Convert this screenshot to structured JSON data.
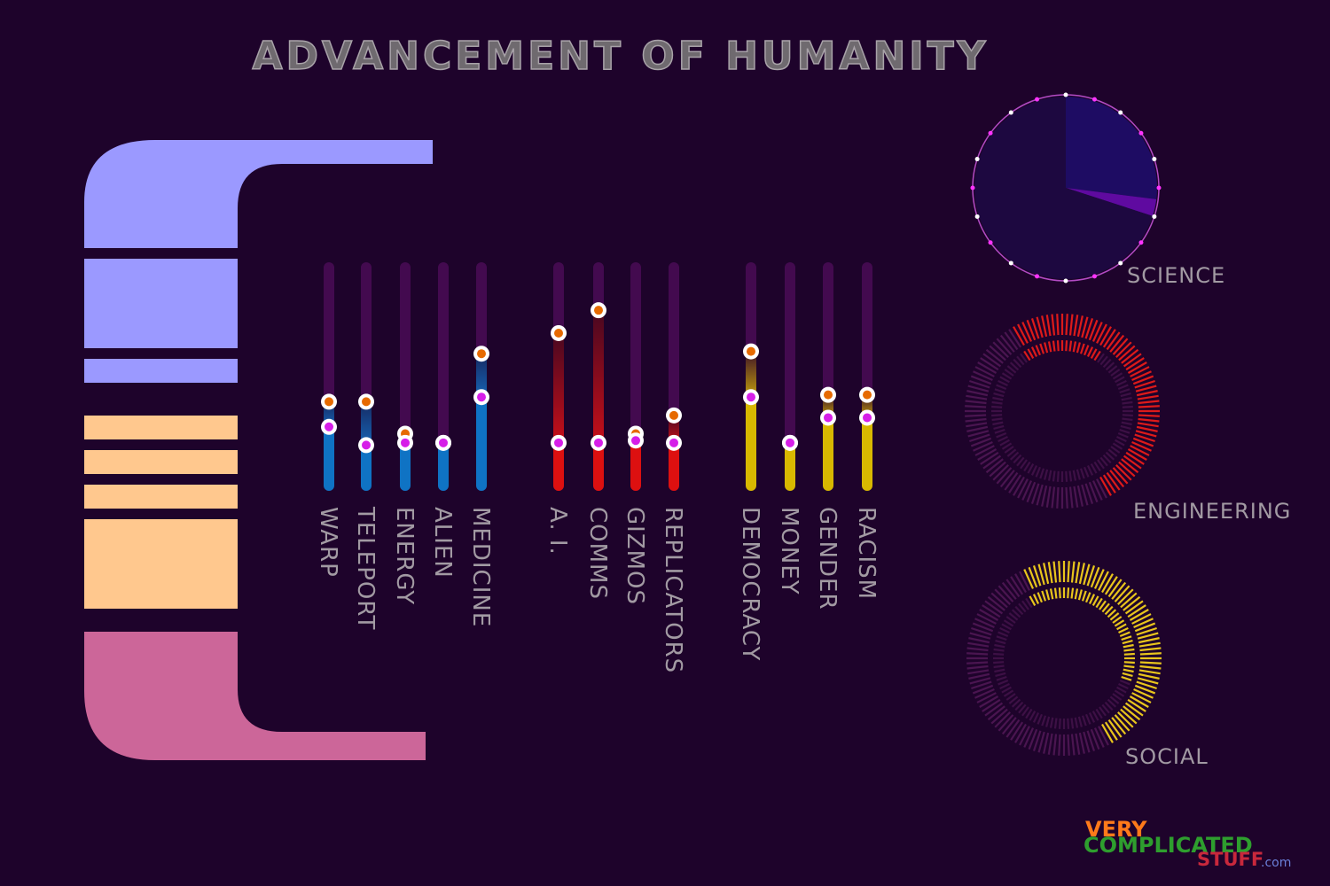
{
  "title": "ADVANCEMENT OF HUMANITY",
  "colors": {
    "background": "#1e032b",
    "panel_lavender": "#9b99ff",
    "panel_peach": "#ffc88e",
    "panel_pink": "#cc6699",
    "track": "#430a4f",
    "science": "#3b2a9e",
    "engineering": "#dd1a1a",
    "social": "#e8c51c",
    "dot_orange": "#e66a00",
    "dot_magenta": "#d61ee8"
  },
  "chart_data": [
    {
      "type": "bar",
      "scale": [
        0,
        100
      ],
      "groups": [
        {
          "name": "science",
          "color_dark": "#0d2f66",
          "color_bright": "#0f73c4",
          "items": [
            {
              "label": "WARP",
              "orange": 39,
              "magenta": 28
            },
            {
              "label": "TELEPORT",
              "orange": 39,
              "magenta": 20
            },
            {
              "label": "ENERGY",
              "orange": 25,
              "magenta": 21
            },
            {
              "label": "ALIEN",
              "orange": 21,
              "magenta": 21
            },
            {
              "label": "MEDICINE",
              "orange": 60,
              "magenta": 41
            }
          ]
        },
        {
          "name": "engineering",
          "color_dark": "#4a0718",
          "color_bright": "#dd1010",
          "items": [
            {
              "label": "A. I.",
              "orange": 69,
              "magenta": 21
            },
            {
              "label": "COMMS",
              "orange": 79,
              "magenta": 21
            },
            {
              "label": "GIZMOS",
              "orange": 25,
              "magenta": 22
            },
            {
              "label": "REPLICATORS",
              "orange": 33,
              "magenta": 21
            }
          ]
        },
        {
          "name": "social",
          "color_dark": "#3d1420",
          "color_bright": "#d8b800",
          "items": [
            {
              "label": "DEMOCRACY",
              "orange": 61,
              "magenta": 41
            },
            {
              "label": "MONEY",
              "orange": 21,
              "magenta": 21
            },
            {
              "label": "GENDER",
              "orange": 42,
              "magenta": 32
            },
            {
              "label": "RACISM",
              "orange": 42,
              "magenta": 32
            }
          ]
        }
      ]
    },
    {
      "type": "pie",
      "label": "SCIENCE",
      "slices": [
        {
          "value": 27,
          "color": "#1e0c63"
        },
        {
          "value": 3,
          "color": "#5f0aa0"
        },
        {
          "value": 70,
          "color": "#1d0840"
        }
      ]
    },
    {
      "type": "area",
      "label": "ENGINEERING",
      "outer_ring": {
        "start_deg": -30,
        "end_deg": 150
      },
      "inner_ring": {
        "start_deg": -35,
        "end_deg": 35
      }
    },
    {
      "type": "area",
      "label": "SOCIAL",
      "outer_ring": {
        "start_deg": -25,
        "end_deg": 150
      },
      "inner_ring": {
        "start_deg": -30,
        "end_deg": 110
      }
    }
  ],
  "logo": {
    "word1": "VERY",
    "word2": "COMPLICATED",
    "word3": "STUFF",
    "suffix": ".com"
  }
}
